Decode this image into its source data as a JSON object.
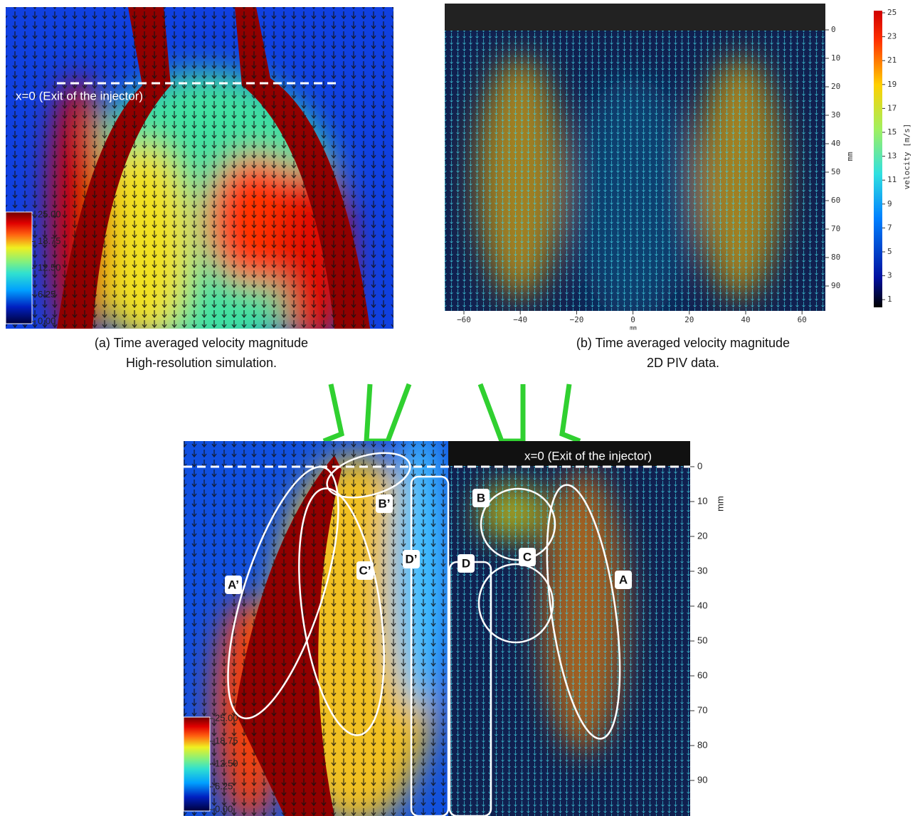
{
  "panel_a": {
    "annotation": "x=0 (Exit of the injector)",
    "colorbar_ticks": [
      "25.00",
      "18.75",
      "12.50",
      "6.25",
      "0.00"
    ],
    "caption": [
      "(a) Time averaged velocity magnitude",
      "High-resolution simulation."
    ]
  },
  "panel_b": {
    "y_ticks": [
      "0",
      "10",
      "20",
      "30",
      "40",
      "50",
      "60",
      "70",
      "80",
      "90"
    ],
    "y_label": "mm",
    "x_ticks": [
      "−60",
      "−40",
      "−20",
      "0",
      "20",
      "40",
      "60"
    ],
    "x_label": "mm",
    "colorbar_ticks": [
      "25",
      "23",
      "21",
      "19",
      "17",
      "15",
      "13",
      "11",
      "9",
      "7",
      "5",
      "3",
      "1"
    ],
    "colorbar_label": "velocity [m/s]",
    "caption": [
      "(b) Time averaged velocity magnitude",
      "2D PIV data."
    ]
  },
  "panel_c": {
    "annotation": "x=0 (Exit of the injector)",
    "colorbar_ticks": [
      "25.00",
      "18.75",
      "12.50",
      "6.25",
      "0.00"
    ],
    "y_ticks": [
      "0",
      "10",
      "20",
      "30",
      "40",
      "50",
      "60",
      "70",
      "80",
      "90"
    ],
    "y_label": "mm",
    "region_labels": [
      "A’",
      "B’",
      "C’",
      "D’",
      "A",
      "B",
      "C",
      "D"
    ]
  }
}
